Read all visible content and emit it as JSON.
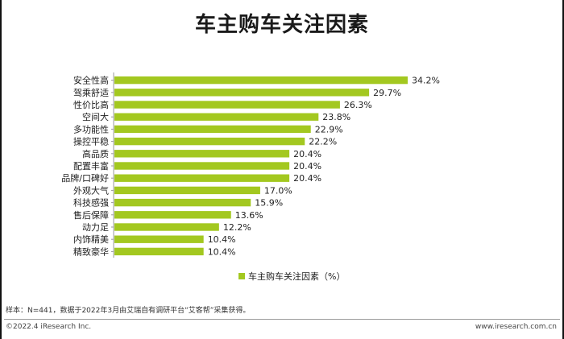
{
  "title": "车主购车关注因素",
  "chart_data": {
    "type": "bar",
    "orientation": "horizontal",
    "categories": [
      "安全性高",
      "驾乘舒适",
      "性价比高",
      "空间大",
      "多功能性",
      "操控平稳",
      "高品质",
      "配置丰富",
      "品牌/口碑好",
      "外观大气",
      "科技感强",
      "售后保障",
      "动力足",
      "内饰精美",
      "精致豪华"
    ],
    "series": [
      {
        "name": "车主购车关注因素（%）",
        "values": [
          34.2,
          29.7,
          26.3,
          23.8,
          22.9,
          22.2,
          20.4,
          20.4,
          20.4,
          17.0,
          15.9,
          13.6,
          12.2,
          10.4,
          10.4
        ],
        "labels": [
          "34.2%",
          "29.7%",
          "26.3%",
          "23.8%",
          "22.9%",
          "22.2%",
          "20.4%",
          "20.4%",
          "20.4%",
          "17.0%",
          "15.9%",
          "13.6%",
          "12.2%",
          "10.4%",
          "10.4%"
        ]
      }
    ],
    "color": "#a3c820",
    "xlim": [
      0,
      34.2
    ],
    "legend_position": "bottom"
  },
  "legend_label": "车主购车关注因素（%）",
  "note": "样本：N=441，数据于2022年3月由艾瑞自有调研平台“艾客帮”采集获得。",
  "copyright": "©2022.4 iResearch Inc.",
  "website": "www.iresearch.com.cn"
}
